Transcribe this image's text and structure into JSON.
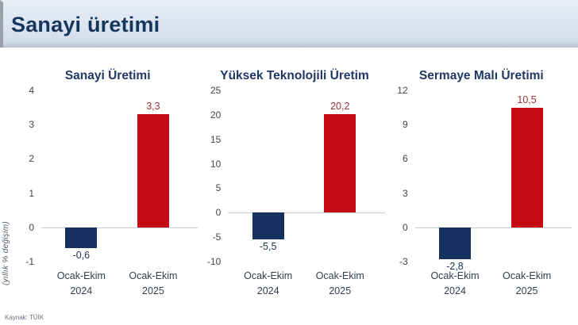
{
  "header": {
    "title": "Sanayi üretimi"
  },
  "ylabel": "(yıllık % değişim)",
  "source": "Kaynak: TÜİK",
  "colors": {
    "bar_2024": "#16315f",
    "bar_2025": "#c40a12",
    "label_2024": "#1c2f4e",
    "label_2025": "#9e3034",
    "chart_title": "#1f3864",
    "header_bg": "#dbe4f1",
    "header_title": "#17365d",
    "zero_line": "#c9ced4"
  },
  "chart_data": [
    {
      "type": "bar",
      "title": "Sanayi Üretimi",
      "categories": [
        "Ocak-Ekim 2024",
        "Ocak-Ekim 2025"
      ],
      "values": [
        -0.6,
        3.3
      ],
      "value_labels": [
        "-0,6",
        "3,3"
      ],
      "ylabel": "(yıllık % değişim)",
      "ylim": [
        -1,
        4
      ],
      "yticks": [
        4,
        3,
        2,
        1,
        0,
        -1
      ],
      "grid": "zero-line-only",
      "legend": "none"
    },
    {
      "type": "bar",
      "title": "Yüksek Teknolojili Üretim",
      "categories": [
        "Ocak-Ekim 2024",
        "Ocak-Ekim 2025"
      ],
      "values": [
        -5.5,
        20.2
      ],
      "value_labels": [
        "-5,5",
        "20,2"
      ],
      "ylabel": "",
      "ylim": [
        -10,
        25
      ],
      "yticks": [
        25,
        20,
        15,
        10,
        5,
        0,
        -5,
        -10
      ],
      "grid": "zero-line-only",
      "legend": "none"
    },
    {
      "type": "bar",
      "title": "Sermaye Malı Üretimi",
      "categories": [
        "Ocak-Ekim 2024",
        "Ocak-Ekim 2025"
      ],
      "values": [
        -2.8,
        10.5
      ],
      "value_labels": [
        "-2,8",
        "10,5"
      ],
      "ylabel": "",
      "ylim": [
        -3,
        12
      ],
      "yticks": [
        12,
        9,
        6,
        3,
        0,
        -3
      ],
      "grid": "zero-line-only",
      "legend": "none"
    }
  ]
}
